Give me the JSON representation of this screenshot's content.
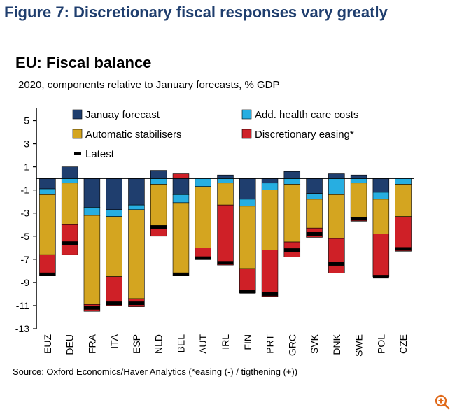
{
  "figure_title": "Figure 7: Discretionary fiscal responses vary greatly",
  "source": "Source: Oxford Economics/Haver Analytics (*easing (-) / tigthening (+))",
  "zoom_icon": "zoom-in-icon",
  "colors": {
    "january": "#1f3e6e",
    "health": "#27aee1",
    "stabilisers": "#d4a520",
    "discretionary": "#cf2027",
    "latest": "#000000"
  },
  "chart_data": {
    "type": "bar",
    "title": "EU: Fiscal balance",
    "subtitle": "2020, components relative to January forecasts, % GDP",
    "ylim": [
      -13,
      6
    ],
    "yticks": [
      5,
      3,
      1,
      -1,
      -3,
      -5,
      -7,
      -9,
      -11,
      -13
    ],
    "categories": [
      "EUZ",
      "DEU",
      "FRA",
      "ITA",
      "ESP",
      "NLD",
      "BEL",
      "AUT",
      "IRL",
      "FIN",
      "PRT",
      "GRC",
      "SVK",
      "DNK",
      "SWE",
      "POL",
      "CZE"
    ],
    "series": [
      {
        "name": "Januay forecast",
        "key": "january",
        "values": [
          -0.9,
          1.0,
          -2.5,
          -2.7,
          -2.3,
          0.7,
          -1.4,
          0.0,
          0.3,
          -1.8,
          -0.4,
          0.6,
          -1.3,
          0.4,
          0.3,
          -1.2,
          0.0
        ]
      },
      {
        "name": "Add. health care costs",
        "key": "health",
        "values": [
          -0.5,
          -0.4,
          -0.7,
          -0.6,
          -0.4,
          -0.5,
          -0.7,
          -0.7,
          -0.4,
          -0.6,
          -0.6,
          -0.5,
          -0.5,
          -1.4,
          -0.4,
          -0.6,
          -0.5
        ]
      },
      {
        "name": "Automatic stabilisers",
        "key": "stabilisers",
        "values": [
          -5.2,
          -3.6,
          -7.7,
          -5.2,
          -7.7,
          -3.6,
          -6.3,
          -5.3,
          -1.9,
          -5.4,
          -5.2,
          -5.0,
          -2.5,
          -3.8,
          -3.0,
          -3.0,
          -2.8
        ]
      },
      {
        "name": "Discretionary easing*",
        "key": "discretionary",
        "values": [
          -1.8,
          -2.6,
          -0.6,
          -2.5,
          -0.7,
          -0.9,
          0.4,
          -1.0,
          -5.2,
          -2.1,
          -4.0,
          -1.3,
          -0.8,
          -3.0,
          -0.3,
          -3.7,
          -3.0
        ]
      },
      {
        "name": "Latest",
        "key": "latest",
        "values": [
          -8.3,
          -5.6,
          -11.2,
          -10.8,
          -10.8,
          -4.2,
          -8.3,
          -6.9,
          -7.3,
          -9.8,
          -10.0,
          -6.2,
          -4.8,
          -7.4,
          -3.5,
          -8.5,
          -6.1
        ]
      }
    ],
    "legend": [
      "Januay forecast",
      "Add. health care costs",
      "Automatic stabilisers",
      "Discretionary easing*",
      "Latest"
    ]
  }
}
